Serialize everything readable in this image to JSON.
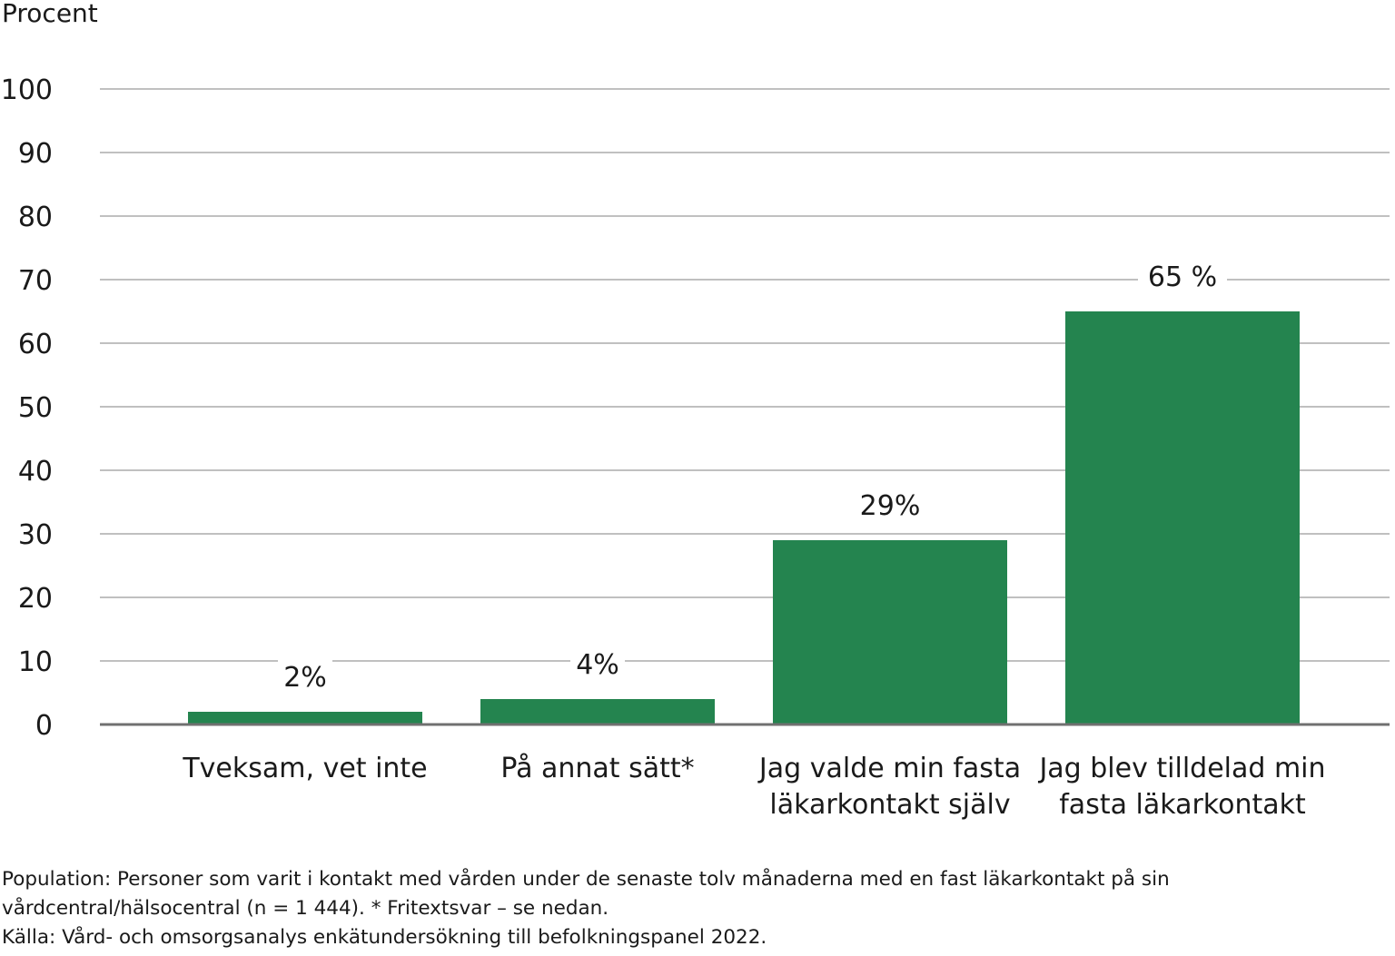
{
  "chart_data": {
    "type": "bar",
    "ylabel": "Procent",
    "ylim": [
      0,
      100
    ],
    "yticks": [
      0,
      10,
      20,
      30,
      40,
      50,
      60,
      70,
      80,
      90,
      100
    ],
    "grid": true,
    "bar_color": "#24844F",
    "categories": [
      [
        "Tveksam, vet inte"
      ],
      [
        "På annat sätt*"
      ],
      [
        "Jag valde min fasta",
        "läkarkontakt själv"
      ],
      [
        "Jag blev tilldelad min",
        "fasta läkarkontakt"
      ]
    ],
    "values": [
      2,
      4,
      29,
      65
    ],
    "data_labels": [
      "2%",
      "4%",
      "29%",
      "65 %"
    ]
  },
  "notes": {
    "population_line1": "Population: Personer som varit i kontakt med vården under de senaste tolv månaderna med en fast läkarkontakt på sin",
    "population_line2": "vårdcentral/hälsocentral (n = 1 444). * Fritextsvar – se nedan.",
    "source": "Källa: Vård- och omsorgsanalys enkätundersökning till befolkningspanel 2022."
  }
}
